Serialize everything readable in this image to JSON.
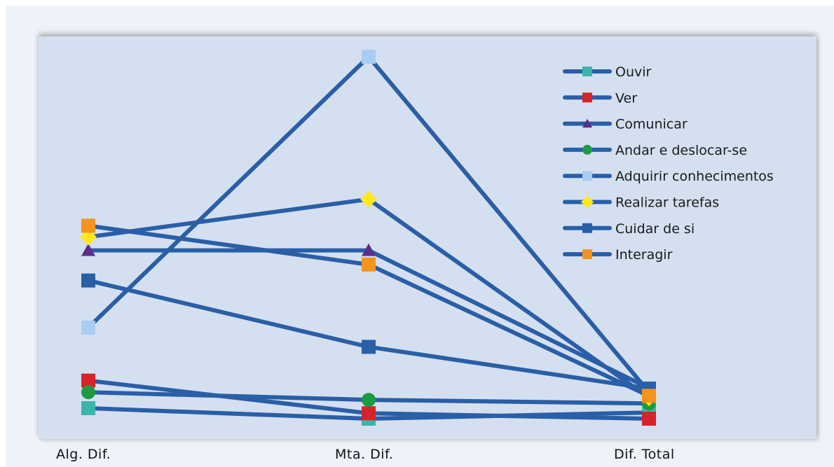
{
  "chart_data": {
    "type": "line",
    "categories": [
      "Alg. Dif.",
      "Mta. Dif.",
      "Dif. Total"
    ],
    "ylim": [
      0,
      100
    ],
    "legend_position": "top-right",
    "line_color": "#2a5fa8",
    "series": [
      {
        "name": "Ouvir",
        "values": [
          2.9,
          0,
          1.7
        ],
        "marker": "square",
        "color": "#3cb4ae"
      },
      {
        "name": "Ver",
        "values": [
          10.5,
          1.5,
          0
        ],
        "marker": "square",
        "color": "#d9232b"
      },
      {
        "name": "Comunicar",
        "values": [
          46.4,
          46.4,
          8.4
        ],
        "marker": "triangle",
        "color": "#5b2d8c"
      },
      {
        "name": "Andar e deslocar-se",
        "values": [
          7.3,
          5.2,
          4.2
        ],
        "marker": "circle",
        "color": "#1e9a43"
      },
      {
        "name": "Adquirir conhecimentos",
        "values": [
          25.1,
          99.8,
          7.3
        ],
        "marker": "square",
        "color": "#a9ccf2"
      },
      {
        "name": "Realizar tarefas",
        "values": [
          50.1,
          60.5,
          5.8
        ],
        "marker": "diamond",
        "color": "#ffe81f"
      },
      {
        "name": "Cuidar de si",
        "values": [
          38.1,
          19.8,
          8.3
        ],
        "marker": "square",
        "color": "#2a5fa8"
      },
      {
        "name": "Interagir",
        "values": [
          53.2,
          42.5,
          6.3
        ],
        "marker": "square",
        "color": "#f4931e"
      }
    ]
  }
}
